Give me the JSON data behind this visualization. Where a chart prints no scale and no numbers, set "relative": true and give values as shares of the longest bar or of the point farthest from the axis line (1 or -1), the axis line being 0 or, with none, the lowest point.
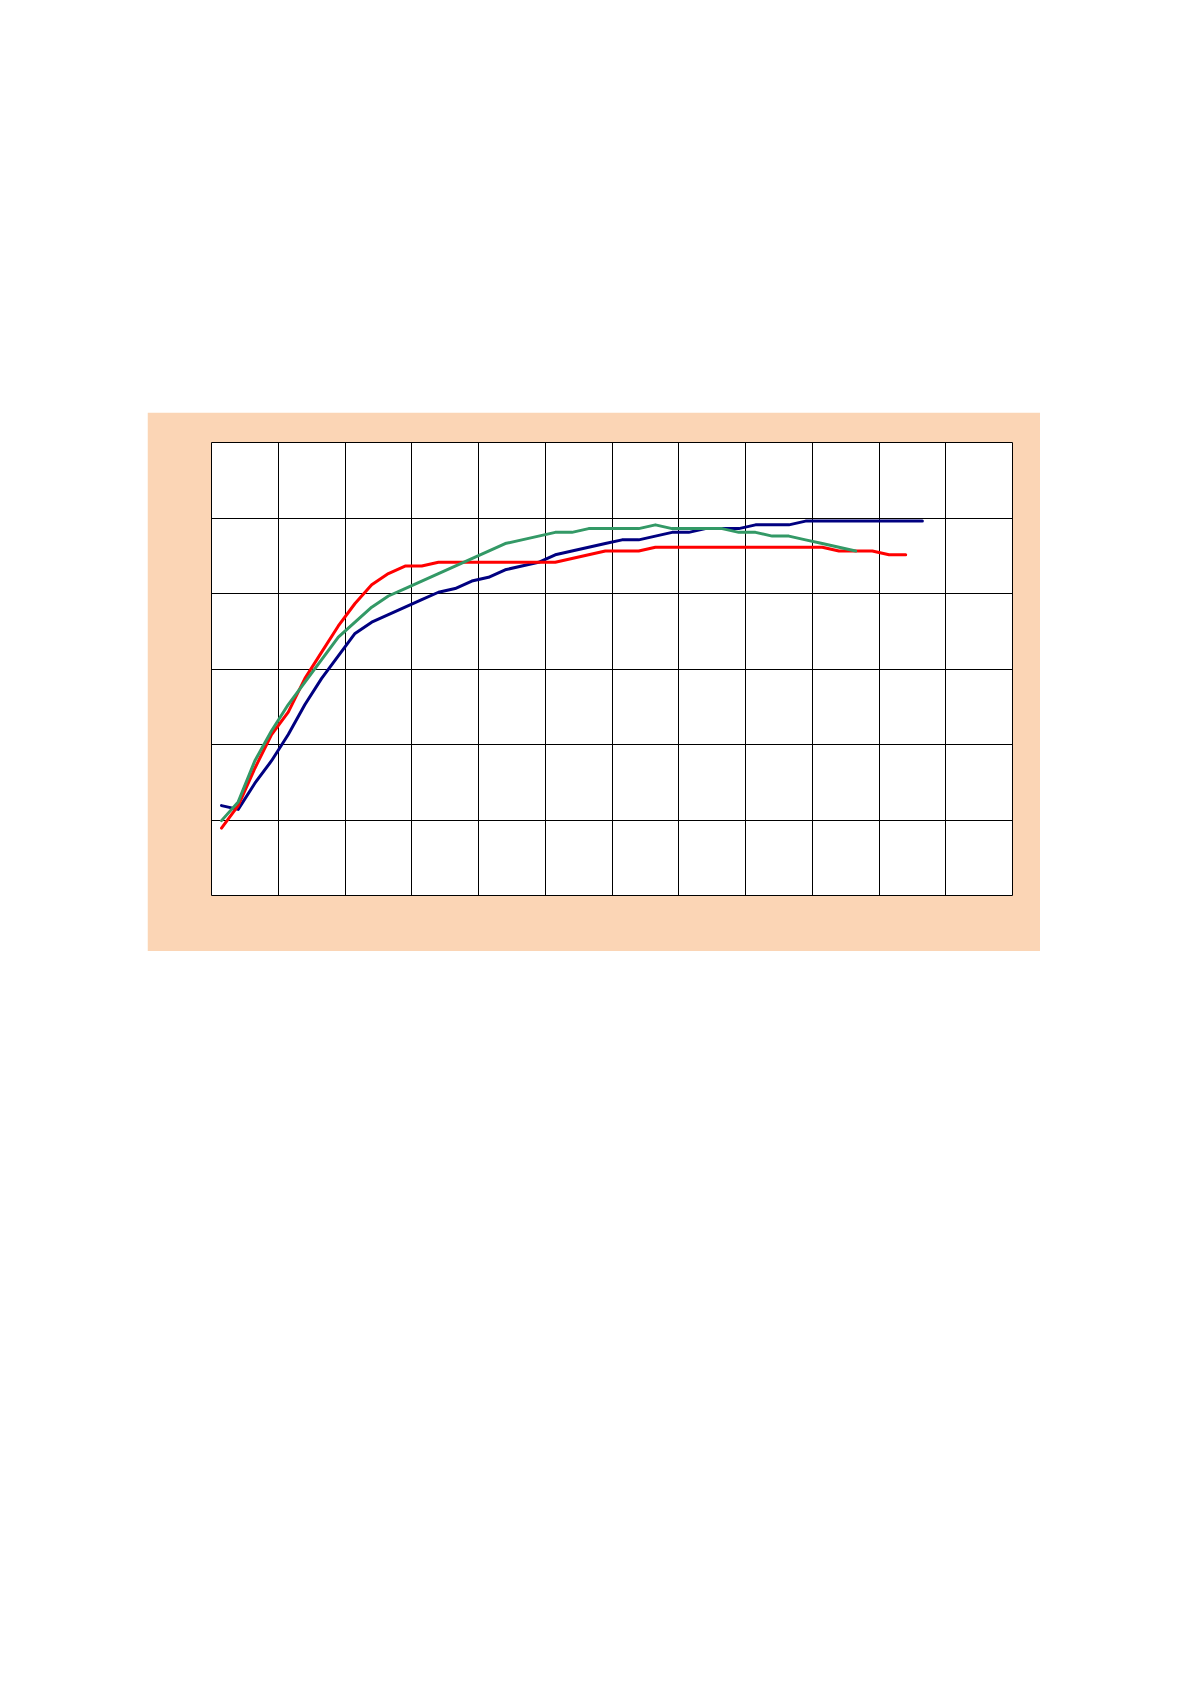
{
  "chart_data": {
    "type": "line",
    "relative": true,
    "grid": true,
    "categories": [
      null,
      null,
      null,
      null,
      null,
      null,
      null,
      null,
      null,
      null,
      null,
      null,
      null,
      null,
      null,
      null,
      null,
      null,
      null,
      null,
      null,
      null,
      null,
      null,
      null,
      null,
      null,
      null,
      null,
      null,
      null,
      null,
      null,
      null,
      null,
      null,
      null,
      null,
      null,
      null,
      null,
      null,
      null
    ],
    "series": [
      {
        "color": "#000080",
        "values": [
          0.24,
          0.23,
          0.3,
          0.36,
          0.43,
          0.51,
          0.58,
          0.64,
          0.7,
          0.73,
          0.75,
          0.77,
          0.79,
          0.81,
          0.82,
          0.84,
          0.85,
          0.87,
          0.88,
          0.89,
          0.91,
          0.92,
          0.93,
          0.94,
          0.95,
          0.95,
          0.96,
          0.97,
          0.97,
          0.98,
          0.98,
          0.98,
          0.99,
          0.99,
          0.99,
          1,
          1,
          1,
          1,
          1,
          1,
          1,
          1
        ]
      },
      {
        "color": "#ff0000",
        "values": [
          0.18,
          0.24,
          0.34,
          0.43,
          0.49,
          0.58,
          0.65,
          0.72,
          0.78,
          0.83,
          0.86,
          0.88,
          0.88,
          0.89,
          0.89,
          0.89,
          0.89,
          0.89,
          0.89,
          0.89,
          0.89,
          0.9,
          0.91,
          0.92,
          0.92,
          0.92,
          0.93,
          0.93,
          0.93,
          0.93,
          0.93,
          0.93,
          0.93,
          0.93,
          0.93,
          0.93,
          0.93,
          0.92,
          0.92,
          0.92,
          0.91,
          0.91,
          null
        ]
      },
      {
        "color": "#339966",
        "values": [
          0.2,
          0.25,
          0.36,
          0.44,
          0.51,
          0.57,
          0.63,
          0.69,
          0.73,
          0.77,
          0.8,
          0.82,
          0.84,
          0.86,
          0.88,
          0.9,
          0.92,
          0.94,
          0.95,
          0.96,
          0.97,
          0.97,
          0.98,
          0.98,
          0.98,
          0.98,
          0.99,
          0.98,
          0.98,
          0.98,
          0.98,
          0.97,
          0.97,
          0.96,
          0.96,
          0.95,
          0.94,
          0.93,
          0.92,
          null,
          null,
          null,
          null
        ]
      }
    ]
  }
}
